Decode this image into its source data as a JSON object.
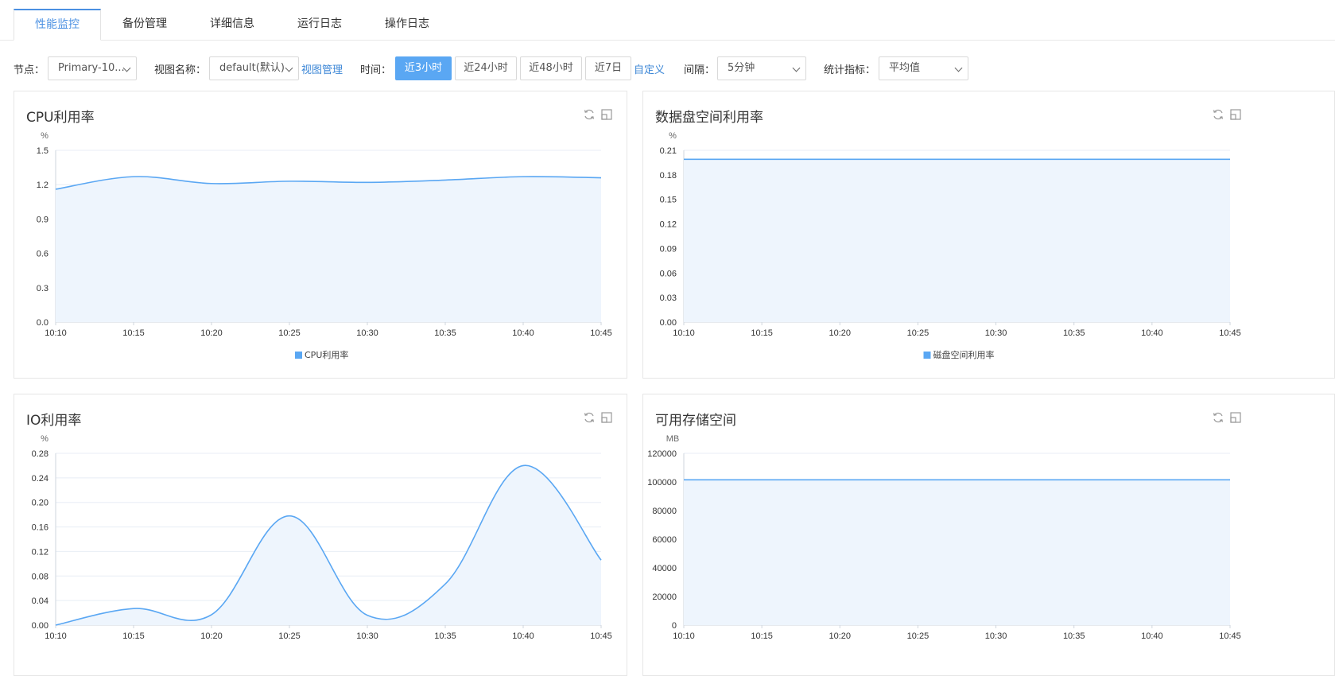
{
  "tabs": [
    {
      "label": "性能监控",
      "active": true
    },
    {
      "label": "备份管理",
      "active": false
    },
    {
      "label": "详细信息",
      "active": false
    },
    {
      "label": "运行日志",
      "active": false
    },
    {
      "label": "操作日志",
      "active": false
    }
  ],
  "toolbar": {
    "node_label": "节点：",
    "node_value": "Primary-10...",
    "view_label": "视图名称：",
    "view_value": "default(默认)",
    "view_manage": "视图管理",
    "time_label": "时间：",
    "time_options": [
      "近3小时",
      "近24小时",
      "近48小时",
      "近7日"
    ],
    "time_selected": "近3小时",
    "custom": "自定义",
    "interval_label": "间隔：",
    "interval_value": "5分钟",
    "metric_label": "统计指标：",
    "metric_value": "平均值"
  },
  "colors": {
    "accent": "#4a90e2",
    "series": "#5aa7f3",
    "fill": "#eef5fd",
    "grid": "#e8eef5"
  },
  "icons": {
    "refresh": "refresh-icon",
    "expand": "expand-icon"
  },
  "chart_data": [
    {
      "type": "area",
      "title": "CPU利用率",
      "unit": "%",
      "x": [
        "10:10",
        "10:15",
        "10:20",
        "10:25",
        "10:30",
        "10:35",
        "10:40",
        "10:45"
      ],
      "yticks": [
        "0.0",
        "0.3",
        "0.6",
        "0.9",
        "1.2",
        "1.5"
      ],
      "ylim": [
        0,
        1.5
      ],
      "series": [
        {
          "name": "CPU利用率",
          "values": [
            1.16,
            1.27,
            1.21,
            1.23,
            1.22,
            1.24,
            1.27,
            1.26
          ]
        }
      ],
      "legend": "bottom-center"
    },
    {
      "type": "area",
      "title": "数据盘空间利用率",
      "unit": "%",
      "x": [
        "10:10",
        "10:15",
        "10:20",
        "10:25",
        "10:30",
        "10:35",
        "10:40",
        "10:45"
      ],
      "yticks": [
        "0.00",
        "0.03",
        "0.06",
        "0.09",
        "0.12",
        "0.15",
        "0.18",
        "0.21"
      ],
      "ylim": [
        0,
        0.21
      ],
      "series": [
        {
          "name": "磁盘空间利用率",
          "values": [
            0.199,
            0.199,
            0.199,
            0.199,
            0.199,
            0.199,
            0.199,
            0.199
          ]
        }
      ],
      "legend": "bottom-center"
    },
    {
      "type": "area",
      "title": "IO利用率",
      "unit": "%",
      "x": [
        "10:10",
        "10:15",
        "10:20",
        "10:25",
        "10:30",
        "10:35",
        "10:40",
        "10:45"
      ],
      "yticks": [
        "0.00",
        "0.04",
        "0.08",
        "0.12",
        "0.16",
        "0.20",
        "0.24",
        "0.28"
      ],
      "ylim": [
        0,
        0.28
      ],
      "series": [
        {
          "name": "IO利用率",
          "values": [
            0.0,
            0.027,
            0.017,
            0.178,
            0.016,
            0.067,
            0.26,
            0.106
          ]
        }
      ],
      "legend": "bottom-center"
    },
    {
      "type": "area",
      "title": "可用存储空间",
      "unit": "MB",
      "x": [
        "10:10",
        "10:15",
        "10:20",
        "10:25",
        "10:30",
        "10:35",
        "10:40",
        "10:45"
      ],
      "yticks": [
        "0",
        "20000",
        "40000",
        "60000",
        "80000",
        "100000",
        "120000"
      ],
      "ylim": [
        0,
        120000
      ],
      "series": [
        {
          "name": "可用存储空间",
          "values": [
            101500,
            101500,
            101500,
            101500,
            101500,
            101500,
            101500,
            101500
          ]
        }
      ],
      "legend": "bottom-center"
    }
  ]
}
